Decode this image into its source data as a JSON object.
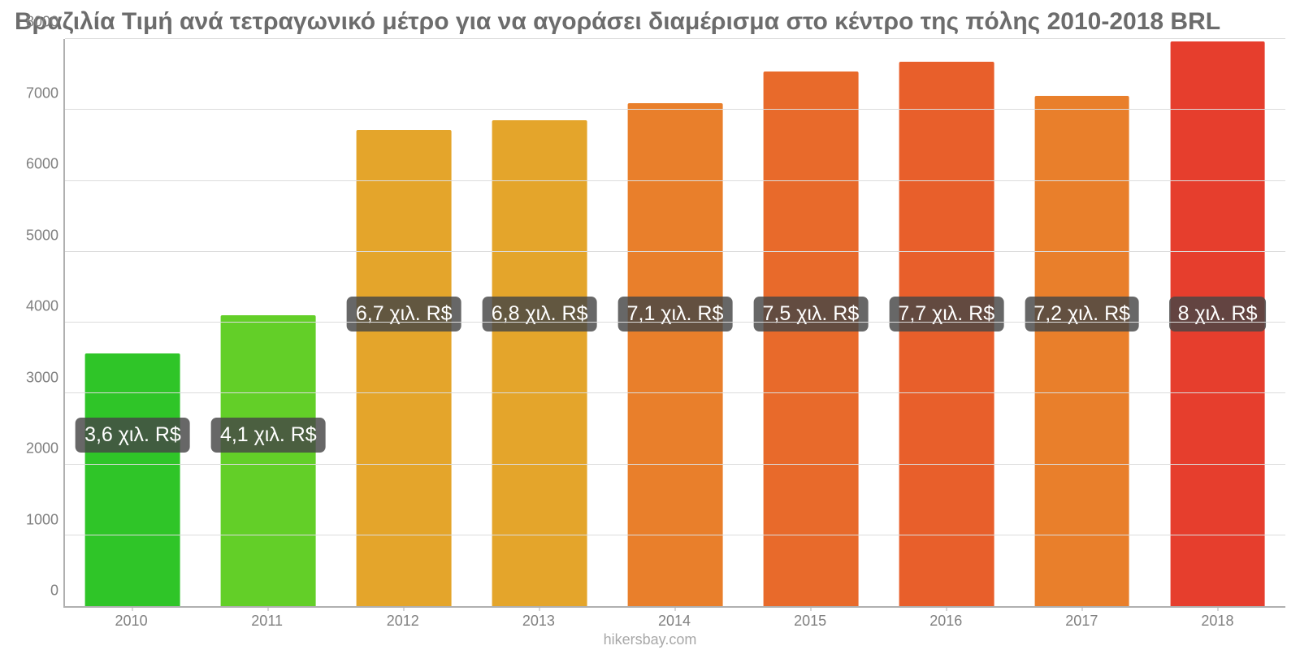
{
  "chart": {
    "type": "bar",
    "title": "Βραζιλία Τιμή ανά τετραγωνικό μέτρο για να αγοράσει διαμέρισμα στο κέντρο της πόλης 2010-2018 BRL",
    "title_color": "#6c6c6c",
    "title_fontsize": 30,
    "credit": "hikersbay.com",
    "credit_color": "#a8a8a8",
    "background_color": "#ffffff",
    "grid_color": "#dcdcdc",
    "axis_line_color": "#b0b0b0",
    "axis_label_color": "#808080",
    "axis_label_fontsize": 18,
    "bar_width_pct": 70,
    "label_bg_color": "rgba(70,70,70,0.82)",
    "label_font_color": "#ffffff",
    "label_fontsize": 25,
    "label_y_center_value": 4100,
    "label_low_y_center_value": 2400,
    "y": {
      "min": 0,
      "max": 8000,
      "step": 1000,
      "ticks": [
        "0",
        "1000",
        "2000",
        "3000",
        "4000",
        "5000",
        "6000",
        "7000",
        "8000"
      ]
    },
    "categories": [
      "2010",
      "2011",
      "2012",
      "2013",
      "2014",
      "2015",
      "2016",
      "2017",
      "2018"
    ],
    "values": [
      3570,
      4100,
      6720,
      6850,
      7100,
      7540,
      7680,
      7200,
      7970
    ],
    "value_labels": [
      "3,6 χιλ. R$",
      "4,1 χιλ. R$",
      "6,7 χιλ. R$",
      "6,8 χιλ. R$",
      "7,1 χιλ. R$",
      "7,5 χιλ. R$",
      "7,7 χιλ. R$",
      "7,2 χιλ. R$",
      "8 χιλ. R$"
    ],
    "bar_colors": [
      "#2fc528",
      "#63cf28",
      "#e4a52b",
      "#e4a52b",
      "#e97f2b",
      "#e86a2b",
      "#e85f2b",
      "#e97f2b",
      "#e63e2d"
    ],
    "label_row": [
      "low",
      "low",
      "mid",
      "mid",
      "mid",
      "mid",
      "mid",
      "mid",
      "mid"
    ]
  }
}
